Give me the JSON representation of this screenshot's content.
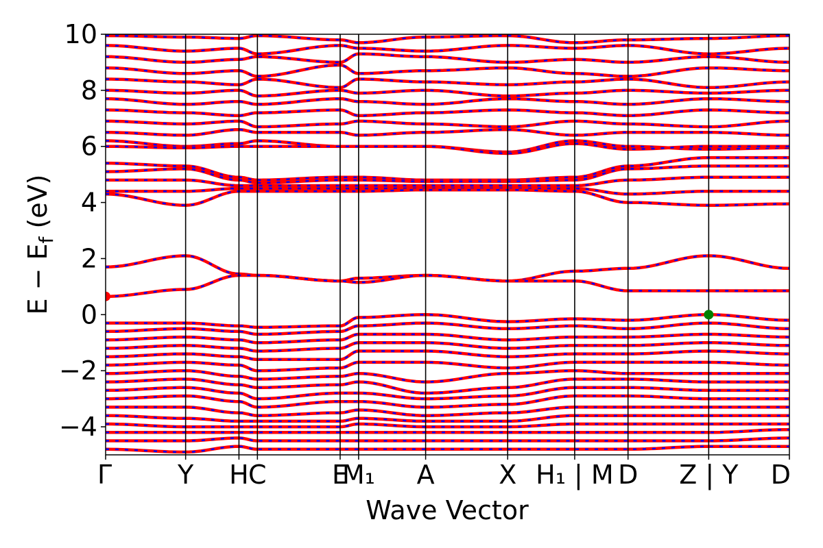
{
  "chart_data": {
    "type": "line",
    "title": "",
    "xlabel": "Wave Vector",
    "ylabel": "E − E",
    "ylabel_sub": "f",
    "ylabel_unit": " (eV)",
    "ylim": [
      -5,
      10
    ],
    "yticks": [
      -4,
      -2,
      0,
      2,
      4,
      6,
      8,
      10
    ],
    "ytick_labels": [
      "−4",
      "−2",
      "0",
      "2",
      "4",
      "6",
      "8",
      "10"
    ],
    "xlim": [
      0,
      1
    ],
    "kpoints": [
      {
        "pos": 0.0,
        "label": "Γ"
      },
      {
        "pos": 0.117,
        "label": "Y"
      },
      {
        "pos": 0.195,
        "label": "H"
      },
      {
        "pos": 0.222,
        "label": "C"
      },
      {
        "pos": 0.343,
        "label": "E"
      },
      {
        "pos": 0.37,
        "label": "M₁"
      },
      {
        "pos": 0.468,
        "label": "A"
      },
      {
        "pos": 0.588,
        "label": "X"
      },
      {
        "pos": 0.686,
        "label": "H₁ | M"
      },
      {
        "pos": 0.764,
        "label": "D"
      },
      {
        "pos": 0.882,
        "label": "Z | Y"
      },
      {
        "pos": 1.0,
        "label": "D"
      }
    ],
    "band_colors": {
      "spin_up": "#ff0000",
      "spin_down": "#0000ff"
    },
    "conduction_band_minimum": {
      "x": 0.0,
      "y": 0.65,
      "color": "#ff0000"
    },
    "valence_band_maximum": {
      "x": 0.882,
      "y": 0.0,
      "color": "#008000"
    },
    "series": [
      {
        "values": [
          9.95,
          9.9,
          9.85,
          9.95,
          9.8,
          9.7,
          9.9,
          9.95,
          9.7,
          9.8,
          9.85,
          9.95
        ]
      },
      {
        "values": [
          9.6,
          9.4,
          9.5,
          9.3,
          9.6,
          9.5,
          9.4,
          9.6,
          9.5,
          9.6,
          9.3,
          9.5
        ]
      },
      {
        "values": [
          9.2,
          9.0,
          9.1,
          9.2,
          9.0,
          9.3,
          9.2,
          9.0,
          9.1,
          9.0,
          9.2,
          9.0
        ]
      },
      {
        "values": [
          8.8,
          8.6,
          8.7,
          8.5,
          8.9,
          8.6,
          8.7,
          8.8,
          8.6,
          8.5,
          8.8,
          8.7
        ]
      },
      {
        "values": [
          8.4,
          8.3,
          8.2,
          8.4,
          8.1,
          8.4,
          8.3,
          8.2,
          8.3,
          8.4,
          8.1,
          8.3
        ]
      },
      {
        "values": [
          8.0,
          7.9,
          8.0,
          7.8,
          8.0,
          7.9,
          8.0,
          7.8,
          7.9,
          8.0,
          7.9,
          8.0
        ]
      },
      {
        "values": [
          7.7,
          7.5,
          7.6,
          7.5,
          7.7,
          7.6,
          7.5,
          7.7,
          7.6,
          7.5,
          7.7,
          7.6
        ]
      },
      {
        "values": [
          7.3,
          7.2,
          7.1,
          7.2,
          7.3,
          7.1,
          7.2,
          7.3,
          7.2,
          7.1,
          7.3,
          7.2
        ]
      },
      {
        "values": [
          6.9,
          6.8,
          6.9,
          6.7,
          6.8,
          6.9,
          6.8,
          6.7,
          6.9,
          6.8,
          6.7,
          6.9
        ]
      },
      {
        "values": [
          6.5,
          6.4,
          6.6,
          6.5,
          6.5,
          6.4,
          6.5,
          6.6,
          6.4,
          6.5,
          6.5,
          6.4
        ]
      },
      {
        "values": [
          6.2,
          6.0,
          6.1,
          6.2,
          6.0,
          6.0,
          6.0,
          5.8,
          6.2,
          6.0,
          5.9,
          5.95
        ]
      },
      {
        "values": [
          6.0,
          5.95,
          6.0,
          6.0,
          6.0,
          6.0,
          6.0,
          5.75,
          6.1,
          5.9,
          6.0,
          6.0
        ]
      },
      {
        "values": [
          5.4,
          5.3,
          4.9,
          4.8,
          4.9,
          4.9,
          4.8,
          4.8,
          4.9,
          5.3,
          5.6,
          5.6
        ]
      },
      {
        "values": [
          5.1,
          5.2,
          4.8,
          4.7,
          4.8,
          4.8,
          4.75,
          4.75,
          4.8,
          5.2,
          5.3,
          5.3
        ]
      },
      {
        "values": [
          4.8,
          4.8,
          4.6,
          4.6,
          4.6,
          4.6,
          4.6,
          4.6,
          4.6,
          4.8,
          4.9,
          4.9
        ]
      },
      {
        "values": [
          4.4,
          4.4,
          4.5,
          4.5,
          4.5,
          4.5,
          4.5,
          4.5,
          4.5,
          4.3,
          4.4,
          4.4
        ]
      },
      {
        "values": [
          4.3,
          3.9,
          4.4,
          4.4,
          4.4,
          4.4,
          4.45,
          4.45,
          4.4,
          4.0,
          3.9,
          3.95
        ]
      },
      {
        "values": [
          1.7,
          2.1,
          1.45,
          1.4,
          1.2,
          1.3,
          1.4,
          1.2,
          1.55,
          1.65,
          2.1,
          1.65
        ]
      },
      {
        "values": [
          0.65,
          0.9,
          1.4,
          1.4,
          1.2,
          1.15,
          1.4,
          1.2,
          1.2,
          0.85,
          0.85,
          0.85
        ]
      },
      {
        "values": [
          -0.3,
          -0.3,
          -0.4,
          -0.45,
          -0.4,
          -0.1,
          0.0,
          -0.25,
          -0.15,
          -0.2,
          0.0,
          -0.2
        ]
      },
      {
        "values": [
          -0.6,
          -0.5,
          -0.6,
          -0.7,
          -0.6,
          -0.4,
          -0.3,
          -0.5,
          -0.4,
          -0.5,
          -0.3,
          -0.5
        ]
      },
      {
        "values": [
          -0.9,
          -0.8,
          -0.9,
          -1.0,
          -0.9,
          -0.7,
          -0.7,
          -0.9,
          -0.8,
          -0.8,
          -0.7,
          -0.8
        ]
      },
      {
        "values": [
          -1.2,
          -1.1,
          -1.2,
          -1.3,
          -1.2,
          -1.0,
          -1.0,
          -1.2,
          -1.1,
          -1.1,
          -1.0,
          -1.1
        ]
      },
      {
        "values": [
          -1.5,
          -1.4,
          -1.5,
          -1.6,
          -1.6,
          -1.3,
          -1.3,
          -1.5,
          -1.4,
          -1.4,
          -1.3,
          -1.4
        ]
      },
      {
        "values": [
          -1.8,
          -1.7,
          -1.8,
          -2.0,
          -1.9,
          -1.7,
          -1.7,
          -1.9,
          -1.7,
          -1.7,
          -1.7,
          -1.8
        ]
      },
      {
        "values": [
          -2.1,
          -2.0,
          -2.2,
          -2.3,
          -2.2,
          -2.1,
          -2.4,
          -2.1,
          -2.0,
          -2.1,
          -2.1,
          -2.1
        ]
      },
      {
        "values": [
          -2.4,
          -2.3,
          -2.5,
          -2.6,
          -2.5,
          -2.4,
          -2.8,
          -2.6,
          -2.3,
          -2.3,
          -2.4,
          -2.4
        ]
      },
      {
        "values": [
          -2.7,
          -2.6,
          -2.8,
          -3.0,
          -2.8,
          -2.8,
          -3.0,
          -2.9,
          -2.6,
          -2.6,
          -2.7,
          -2.7
        ]
      },
      {
        "values": [
          -3.0,
          -2.9,
          -3.1,
          -3.3,
          -3.1,
          -3.1,
          -3.3,
          -3.2,
          -2.9,
          -2.9,
          -3.0,
          -3.0
        ]
      },
      {
        "values": [
          -3.3,
          -3.3,
          -3.5,
          -3.6,
          -3.5,
          -3.4,
          -3.6,
          -3.5,
          -3.3,
          -3.3,
          -3.3,
          -3.3
        ]
      },
      {
        "values": [
          -3.6,
          -3.7,
          -3.8,
          -3.8,
          -3.8,
          -3.7,
          -3.8,
          -3.8,
          -3.6,
          -3.6,
          -3.6,
          -3.6
        ]
      },
      {
        "values": [
          -3.9,
          -4.0,
          -4.0,
          -4.0,
          -4.0,
          -3.9,
          -4.0,
          -4.0,
          -3.9,
          -3.9,
          -3.9,
          -3.9
        ]
      },
      {
        "values": [
          -4.2,
          -4.2,
          -4.2,
          -4.2,
          -4.2,
          -4.2,
          -4.2,
          -4.2,
          -4.2,
          -4.2,
          -4.2,
          -4.1
        ]
      },
      {
        "values": [
          -4.5,
          -4.5,
          -4.4,
          -4.5,
          -4.5,
          -4.5,
          -4.5,
          -4.5,
          -4.5,
          -4.5,
          -4.5,
          -4.4
        ]
      },
      {
        "values": [
          -4.8,
          -4.9,
          -4.7,
          -4.8,
          -4.8,
          -4.8,
          -4.8,
          -4.8,
          -4.8,
          -4.8,
          -4.7,
          -4.7
        ]
      }
    ]
  }
}
